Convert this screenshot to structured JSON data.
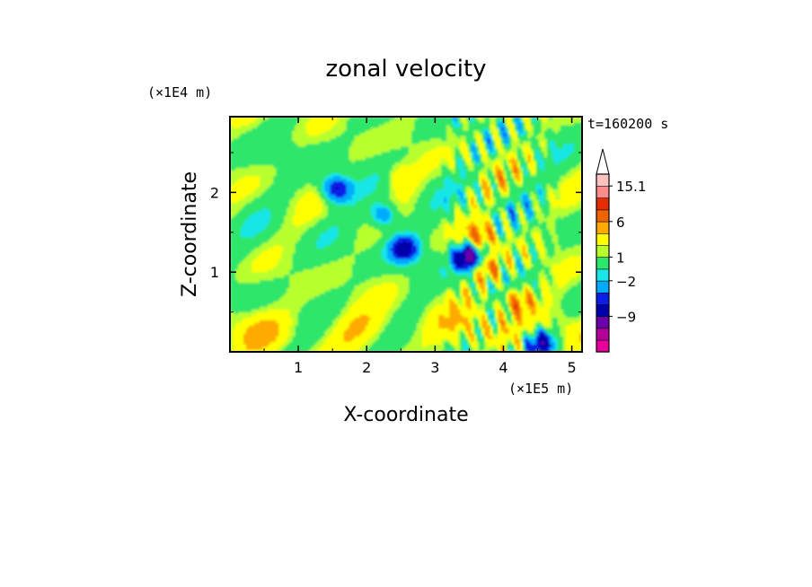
{
  "chart_data": {
    "type": "heatmap",
    "title": "zonal velocity",
    "xlabel": "X-coordinate",
    "ylabel": "Z-coordinate",
    "x_unit": "(×1E5 m)",
    "y_unit": "(×1E4 m)",
    "time_label": "t=160200 s",
    "xlim": [
      0,
      5.15
    ],
    "ylim": [
      0,
      2.95
    ],
    "x_ticks": [
      1,
      2,
      3,
      4,
      5
    ],
    "y_ticks": [
      1,
      2
    ],
    "colorbar": {
      "levels": [
        -15,
        -12,
        -9,
        -6,
        -4,
        -2,
        -1,
        1,
        2,
        4,
        6,
        9,
        12,
        15.1
      ],
      "level_labels": [
        {
          "value": 15.1,
          "text": "15.1"
        },
        {
          "value": 6,
          "text": "6"
        },
        {
          "value": 1,
          "text": "1"
        },
        {
          "value": -2,
          "text": "−2"
        },
        {
          "value": -9,
          "text": "−9"
        }
      ],
      "colors": [
        "#e8009c",
        "#b4009a",
        "#6a00a8",
        "#0000aa",
        "#0a1ee6",
        "#00aaff",
        "#19e6e6",
        "#2ee66b",
        "#b8ff2e",
        "#ffff00",
        "#ffaa00",
        "#f06400",
        "#e62e00",
        "#ff8c8c",
        "#ffc0c0"
      ],
      "extend_max": true
    },
    "field_features": [
      {
        "x": 1.55,
        "z": 2.05,
        "value": -7
      },
      {
        "x": 2.55,
        "z": 1.3,
        "value": -7
      },
      {
        "x": 2.25,
        "z": 1.72,
        "value": -5
      },
      {
        "x": 3.48,
        "z": 1.2,
        "value": -11
      },
      {
        "x": 3.65,
        "z": 1.45,
        "value": 7
      },
      {
        "x": 3.75,
        "z": 1.05,
        "value": 6
      },
      {
        "x": 2.5,
        "z": 2.2,
        "value": 4
      },
      {
        "x": 4.2,
        "z": 0.65,
        "value": 7
      },
      {
        "x": 4.55,
        "z": 0.12,
        "value": -8
      }
    ]
  }
}
